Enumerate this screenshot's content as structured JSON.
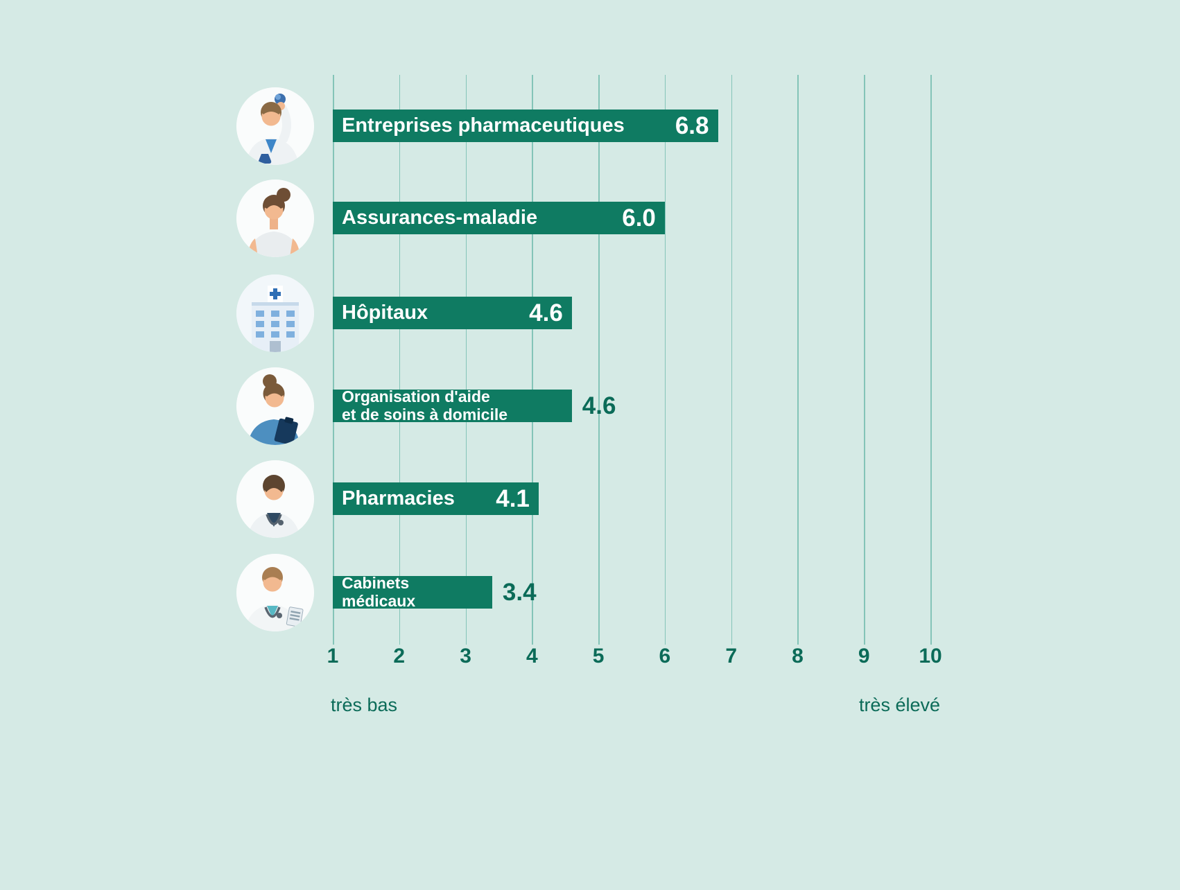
{
  "colors": {
    "background": "#d5eae5",
    "bar": "#0f7b62",
    "gridline": "#84c4b8",
    "axis_text": "#0b6b58",
    "bar_text": "#ffffff"
  },
  "chart_data": {
    "type": "bar",
    "orientation": "horizontal",
    "title": "",
    "categories": [
      "Entreprises pharmaceutiques",
      "Assurances-maladie",
      "Hôpitaux",
      "Organisation d'aide et de soins à domicile",
      "Pharmacies",
      "Cabinets médicaux"
    ],
    "values": [
      6.8,
      6.0,
      4.6,
      4.6,
      4.1,
      3.4
    ],
    "value_labels": [
      "6.8",
      "6.0",
      "4.6",
      "4.6",
      "4.1",
      "3.4"
    ],
    "xlim": [
      1,
      10
    ],
    "x_ticks": [
      "1",
      "2",
      "3",
      "4",
      "5",
      "6",
      "7",
      "8",
      "9",
      "10"
    ],
    "x_min_caption": "très bas",
    "x_max_caption": "très élevé",
    "grid": true,
    "legend_position": "none"
  },
  "bars": [
    {
      "line1": "Entreprises pharmaceutiques",
      "value_label": "6.8",
      "icon": "pharma-scientist"
    },
    {
      "line1": "Assurances-maladie",
      "value_label": "6.0",
      "icon": "insured-woman"
    },
    {
      "line1": "Hôpitaux",
      "value_label": "4.6",
      "icon": "hospital"
    },
    {
      "line1": "Organisation d'aide",
      "line2": "et de soins à domicile",
      "value_label": "4.6",
      "icon": "home-care-nurse"
    },
    {
      "line1": "Pharmacies",
      "value_label": "4.1",
      "icon": "pharmacist"
    },
    {
      "line1": "Cabinets",
      "line2": "médicaux",
      "value_label": "3.4",
      "icon": "doctor"
    }
  ],
  "axis": {
    "ticks": [
      "1",
      "2",
      "3",
      "4",
      "5",
      "6",
      "7",
      "8",
      "9",
      "10"
    ],
    "min_caption": "très bas",
    "max_caption": "très élevé"
  }
}
